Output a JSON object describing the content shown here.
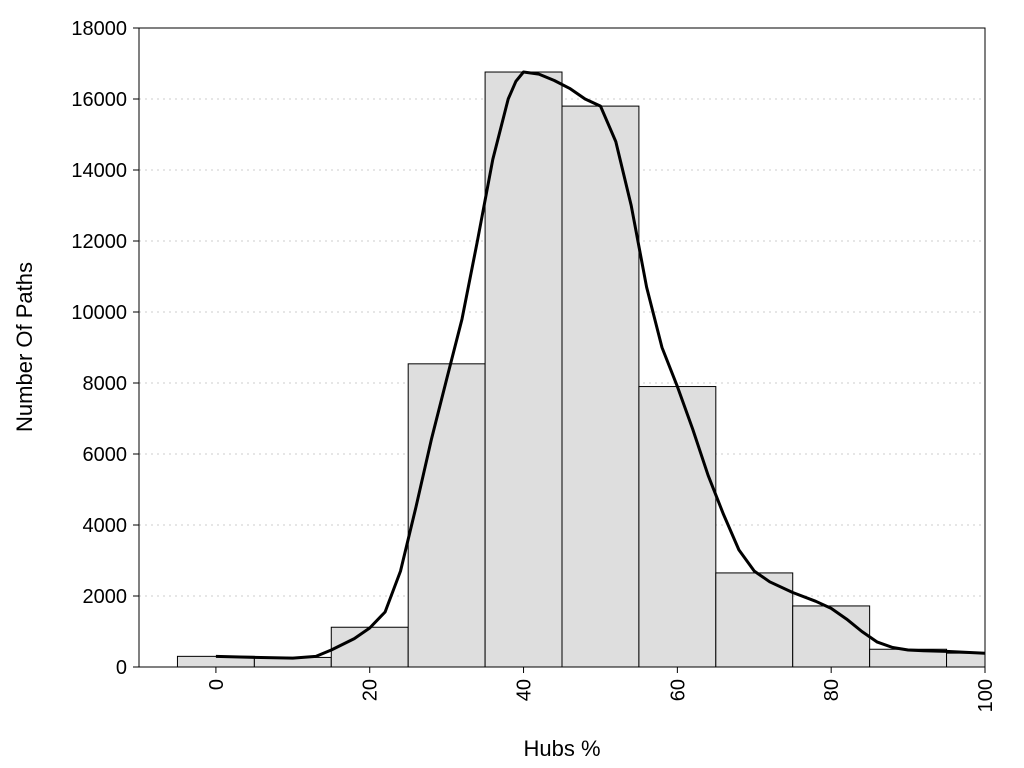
{
  "chart_data": {
    "type": "bar",
    "title": "",
    "xlabel": "Hubs %",
    "ylabel": "Number Of Paths",
    "xlim": [
      -10,
      100
    ],
    "ylim": [
      0,
      18000
    ],
    "grid": "horizontal-dotted",
    "x_ticks": [
      0,
      20,
      40,
      60,
      80,
      100
    ],
    "y_ticks": [
      0,
      2000,
      4000,
      6000,
      8000,
      10000,
      12000,
      14000,
      16000,
      18000
    ],
    "bin_width": 10,
    "bins": [
      {
        "center": 0,
        "value": 300
      },
      {
        "center": 10,
        "value": 270
      },
      {
        "center": 20,
        "value": 1120
      },
      {
        "center": 30,
        "value": 8540
      },
      {
        "center": 40,
        "value": 16760
      },
      {
        "center": 50,
        "value": 15800
      },
      {
        "center": 60,
        "value": 7900
      },
      {
        "center": 70,
        "value": 2650
      },
      {
        "center": 80,
        "value": 1720
      },
      {
        "center": 90,
        "value": 500
      },
      {
        "center": 100,
        "value": 390
      }
    ],
    "curve": {
      "type": "line",
      "x": [
        0,
        5,
        10,
        13,
        15,
        18,
        20,
        22,
        24,
        26,
        28,
        30,
        32,
        34,
        36,
        38,
        39,
        40,
        42,
        44,
        46,
        48,
        50,
        52,
        54,
        56,
        58,
        60,
        62,
        64,
        66,
        68,
        70,
        72,
        75,
        78,
        80,
        82,
        84,
        86,
        88,
        90,
        92,
        95,
        100
      ],
      "y": [
        300,
        270,
        250,
        300,
        480,
        800,
        1100,
        1550,
        2700,
        4500,
        6400,
        8100,
        9800,
        12000,
        14300,
        16000,
        16500,
        16760,
        16700,
        16520,
        16300,
        16000,
        15800,
        14800,
        13000,
        10700,
        9000,
        7900,
        6700,
        5400,
        4300,
        3300,
        2700,
        2400,
        2100,
        1850,
        1650,
        1350,
        1000,
        700,
        550,
        480,
        460,
        440,
        390
      ]
    },
    "legend": "none"
  }
}
